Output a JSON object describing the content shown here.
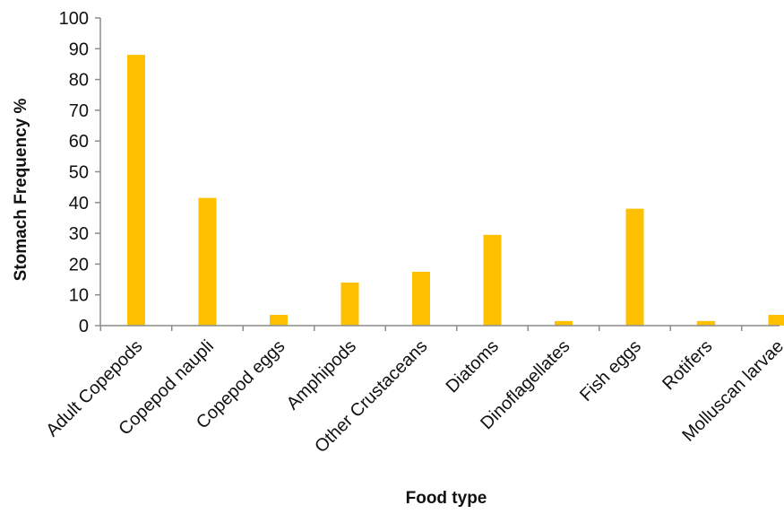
{
  "chart_data": {
    "type": "bar",
    "title": "",
    "xlabel": "Food type",
    "ylabel": "Stomach Frequency %",
    "ylim": [
      0,
      100
    ],
    "yticks": [
      0,
      10,
      20,
      30,
      40,
      50,
      60,
      70,
      80,
      90,
      100
    ],
    "grid": false,
    "legend": false,
    "categories": [
      "Adult Copepods",
      "Copepod naupli",
      "Copepod eggs",
      "Amphipods",
      "Other Crustaceans",
      "Diatoms",
      "Dinoflagellates",
      "Fish eggs",
      "Rotifers",
      "Molluscan larvae"
    ],
    "values": [
      88,
      41.5,
      3.5,
      14,
      17.5,
      29.5,
      1.5,
      38,
      1.5,
      3.5
    ],
    "bar_color": "#ffc000"
  }
}
